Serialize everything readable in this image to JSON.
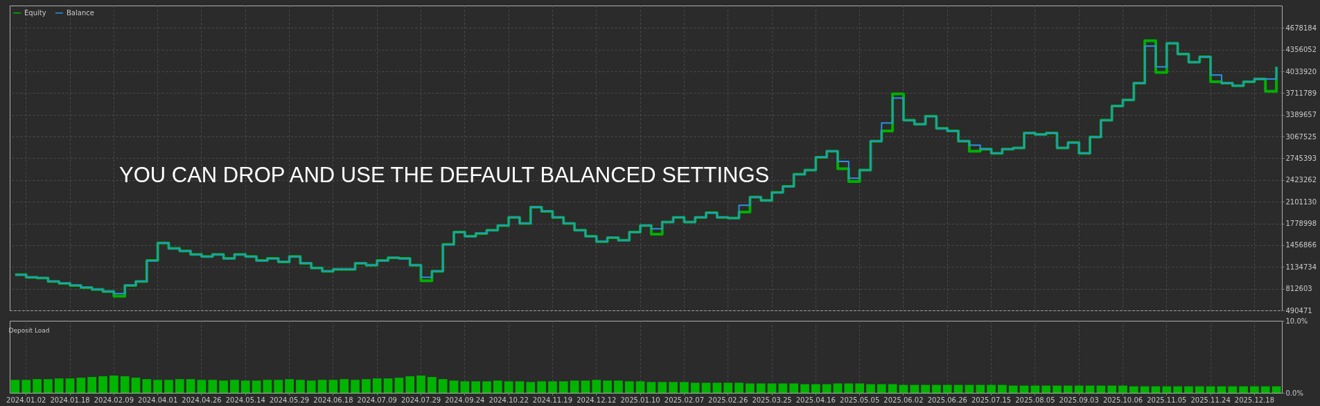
{
  "chart_data": [
    {
      "type": "step",
      "annotations": [
        "YOU CAN DROP AND USE THE DEFAULT BALANCED SETTINGS"
      ],
      "legend": "top left",
      "grid": true,
      "tick_labels": "y",
      "categories": [
        null,
        "2024.01.02",
        null,
        null,
        null,
        "2024.01.18",
        null,
        null,
        null,
        "2024.02.09",
        null,
        null,
        null,
        "2024.04.01",
        null,
        null,
        null,
        "2024.04.26",
        null,
        null,
        null,
        "2024.05.14",
        null,
        null,
        null,
        "2024.05.29",
        null,
        null,
        null,
        "2024.06.18",
        null,
        null,
        null,
        "2024.07.09",
        null,
        null,
        null,
        "2024.07.29",
        null,
        null,
        null,
        "2024.09.24",
        null,
        null,
        null,
        "2024.10.22",
        null,
        null,
        null,
        "2024.11.19",
        null,
        null,
        null,
        "2024.12.12",
        null,
        null,
        null,
        "2025.01.10",
        null,
        null,
        null,
        "2025.02.07",
        null,
        null,
        null,
        "2025.02.26",
        null,
        null,
        null,
        "2025.03.25",
        null,
        null,
        null,
        "2025.04.16",
        null,
        null,
        null,
        "2025.05.05",
        null,
        null,
        null,
        "2025.06.02",
        null,
        null,
        null,
        "2025.06.26",
        null,
        null,
        null,
        "2025.07.15",
        null,
        null,
        null,
        "2025.08.05",
        null,
        null,
        null,
        "2025.09.03",
        null,
        null,
        null,
        "2025.10.06",
        null,
        null,
        null,
        "2025.11.05",
        null,
        null,
        null,
        "2025.11.24",
        null,
        null,
        null,
        "2025.12.18",
        null,
        null
      ],
      "ylim": [
        490471,
        5010000
      ],
      "yticks": [
        490471,
        812603,
        1134734,
        1456866,
        1778998,
        2101130,
        2423262,
        2745393,
        3067525,
        3389657,
        3711789,
        4033920,
        4356052,
        4678184
      ],
      "series": [
        {
          "name": "Equity",
          "color": "#00b000",
          "values": [
            1020000,
            980000,
            970000,
            920000,
            890000,
            860000,
            830000,
            800000,
            770000,
            700000,
            860000,
            920000,
            1230000,
            1490000,
            1410000,
            1370000,
            1320000,
            1290000,
            1320000,
            1260000,
            1320000,
            1290000,
            1230000,
            1260000,
            1210000,
            1290000,
            1190000,
            1120000,
            1070000,
            1100000,
            1100000,
            1190000,
            1160000,
            1230000,
            1270000,
            1260000,
            1160000,
            930000,
            1070000,
            1470000,
            1650000,
            1590000,
            1630000,
            1680000,
            1750000,
            1870000,
            1780000,
            2020000,
            1960000,
            1870000,
            1780000,
            1680000,
            1590000,
            1510000,
            1570000,
            1530000,
            1650000,
            1750000,
            1620000,
            1800000,
            1870000,
            1800000,
            1870000,
            1940000,
            1870000,
            1860000,
            1950000,
            2170000,
            2120000,
            2240000,
            2330000,
            2510000,
            2570000,
            2760000,
            2850000,
            2590000,
            2400000,
            2570000,
            3000000,
            3150000,
            3700000,
            3310000,
            3250000,
            3370000,
            3190000,
            3150000,
            3000000,
            2850000,
            2880000,
            2820000,
            2880000,
            2900000,
            3120000,
            3100000,
            3120000,
            2900000,
            2980000,
            2820000,
            3060000,
            3310000,
            3520000,
            3610000,
            3860000,
            4490000,
            4020000,
            4450000,
            4290000,
            4170000,
            4250000,
            3880000,
            3860000,
            3820000,
            3880000,
            3920000,
            3740000,
            4100000
          ]
        },
        {
          "name": "Balance",
          "color": "#2a93e6",
          "values": [
            1020000,
            980000,
            970000,
            920000,
            890000,
            860000,
            830000,
            800000,
            770000,
            740000,
            860000,
            920000,
            1230000,
            1490000,
            1410000,
            1370000,
            1320000,
            1290000,
            1320000,
            1260000,
            1320000,
            1290000,
            1230000,
            1260000,
            1210000,
            1290000,
            1190000,
            1120000,
            1070000,
            1100000,
            1100000,
            1190000,
            1160000,
            1230000,
            1270000,
            1260000,
            1160000,
            980000,
            1070000,
            1470000,
            1650000,
            1590000,
            1630000,
            1680000,
            1750000,
            1870000,
            1780000,
            2020000,
            1960000,
            1870000,
            1780000,
            1680000,
            1590000,
            1510000,
            1570000,
            1530000,
            1650000,
            1750000,
            1700000,
            1800000,
            1870000,
            1800000,
            1870000,
            1940000,
            1870000,
            1860000,
            2050000,
            2170000,
            2120000,
            2240000,
            2330000,
            2510000,
            2570000,
            2760000,
            2850000,
            2700000,
            2450000,
            2570000,
            3000000,
            3270000,
            3640000,
            3310000,
            3250000,
            3370000,
            3190000,
            3150000,
            3000000,
            2940000,
            2880000,
            2820000,
            2880000,
            2900000,
            3120000,
            3100000,
            3120000,
            2900000,
            2980000,
            2820000,
            3060000,
            3310000,
            3520000,
            3610000,
            3860000,
            4410000,
            4100000,
            4450000,
            4290000,
            4170000,
            4250000,
            3980000,
            3860000,
            3820000,
            3880000,
            3920000,
            3920000,
            4100000
          ]
        }
      ]
    },
    {
      "type": "bar",
      "title": "Deposit Load",
      "grid": "x",
      "color": "#00b400",
      "categories": [
        null,
        "2024.01.02",
        null,
        null,
        null,
        "2024.01.18",
        null,
        null,
        null,
        "2024.02.09",
        null,
        null,
        null,
        "2024.04.01",
        null,
        null,
        null,
        "2024.04.26",
        null,
        null,
        null,
        "2024.05.14",
        null,
        null,
        null,
        "2024.05.29",
        null,
        null,
        null,
        "2024.06.18",
        null,
        null,
        null,
        "2024.07.09",
        null,
        null,
        null,
        "2024.07.29",
        null,
        null,
        null,
        "2024.09.24",
        null,
        null,
        null,
        "2024.10.22",
        null,
        null,
        null,
        "2024.11.19",
        null,
        null,
        null,
        "2024.12.12",
        null,
        null,
        null,
        "2025.01.10",
        null,
        null,
        null,
        "2025.02.07",
        null,
        null,
        null,
        "2025.02.26",
        null,
        null,
        null,
        "2025.03.25",
        null,
        null,
        null,
        "2025.04.16",
        null,
        null,
        null,
        "2025.05.05",
        null,
        null,
        null,
        "2025.06.02",
        null,
        null,
        null,
        "2025.06.26",
        null,
        null,
        null,
        "2025.07.15",
        null,
        null,
        null,
        "2025.08.05",
        null,
        null,
        null,
        "2025.09.03",
        null,
        null,
        null,
        "2025.10.06",
        null,
        null,
        null,
        "2025.11.05",
        null,
        null,
        null,
        "2025.11.24",
        null,
        null,
        null,
        "2025.12.18",
        null,
        null
      ],
      "ylim": [
        0,
        10
      ],
      "yticks": [
        {
          "value": 0,
          "label": "0.0%"
        },
        {
          "value": 10,
          "label": "10.0%"
        }
      ],
      "values": [
        1.8,
        1.8,
        1.9,
        1.9,
        2.0,
        2.0,
        2.1,
        2.2,
        2.3,
        2.4,
        2.3,
        2.1,
        1.9,
        1.8,
        1.8,
        1.9,
        1.9,
        1.8,
        1.8,
        1.7,
        1.8,
        1.7,
        1.7,
        1.8,
        1.8,
        1.9,
        1.8,
        1.7,
        1.8,
        1.8,
        1.9,
        1.8,
        1.9,
        2.0,
        2.0,
        2.1,
        2.3,
        2.4,
        2.2,
        1.9,
        1.7,
        1.6,
        1.6,
        1.6,
        1.7,
        1.6,
        1.6,
        1.5,
        1.6,
        1.6,
        1.6,
        1.7,
        1.7,
        1.8,
        1.7,
        1.7,
        1.6,
        1.6,
        1.5,
        1.5,
        1.5,
        1.5,
        1.4,
        1.4,
        1.4,
        1.4,
        1.4,
        1.3,
        1.3,
        1.3,
        1.3,
        1.3,
        1.2,
        1.2,
        1.2,
        1.3,
        1.3,
        1.3,
        1.2,
        1.2,
        1.2,
        1.1,
        1.1,
        1.1,
        1.1,
        1.1,
        1.1,
        1.1,
        1.1,
        1.1,
        1.1,
        1.0,
        1.0,
        1.0,
        1.0,
        1.0,
        1.0,
        1.0,
        1.0,
        1.0,
        1.0,
        1.0,
        0.9,
        0.9,
        0.9,
        0.9,
        0.9,
        0.9,
        0.9,
        0.9,
        0.9,
        0.9,
        0.9,
        0.9,
        0.9,
        0.9
      ]
    }
  ]
}
